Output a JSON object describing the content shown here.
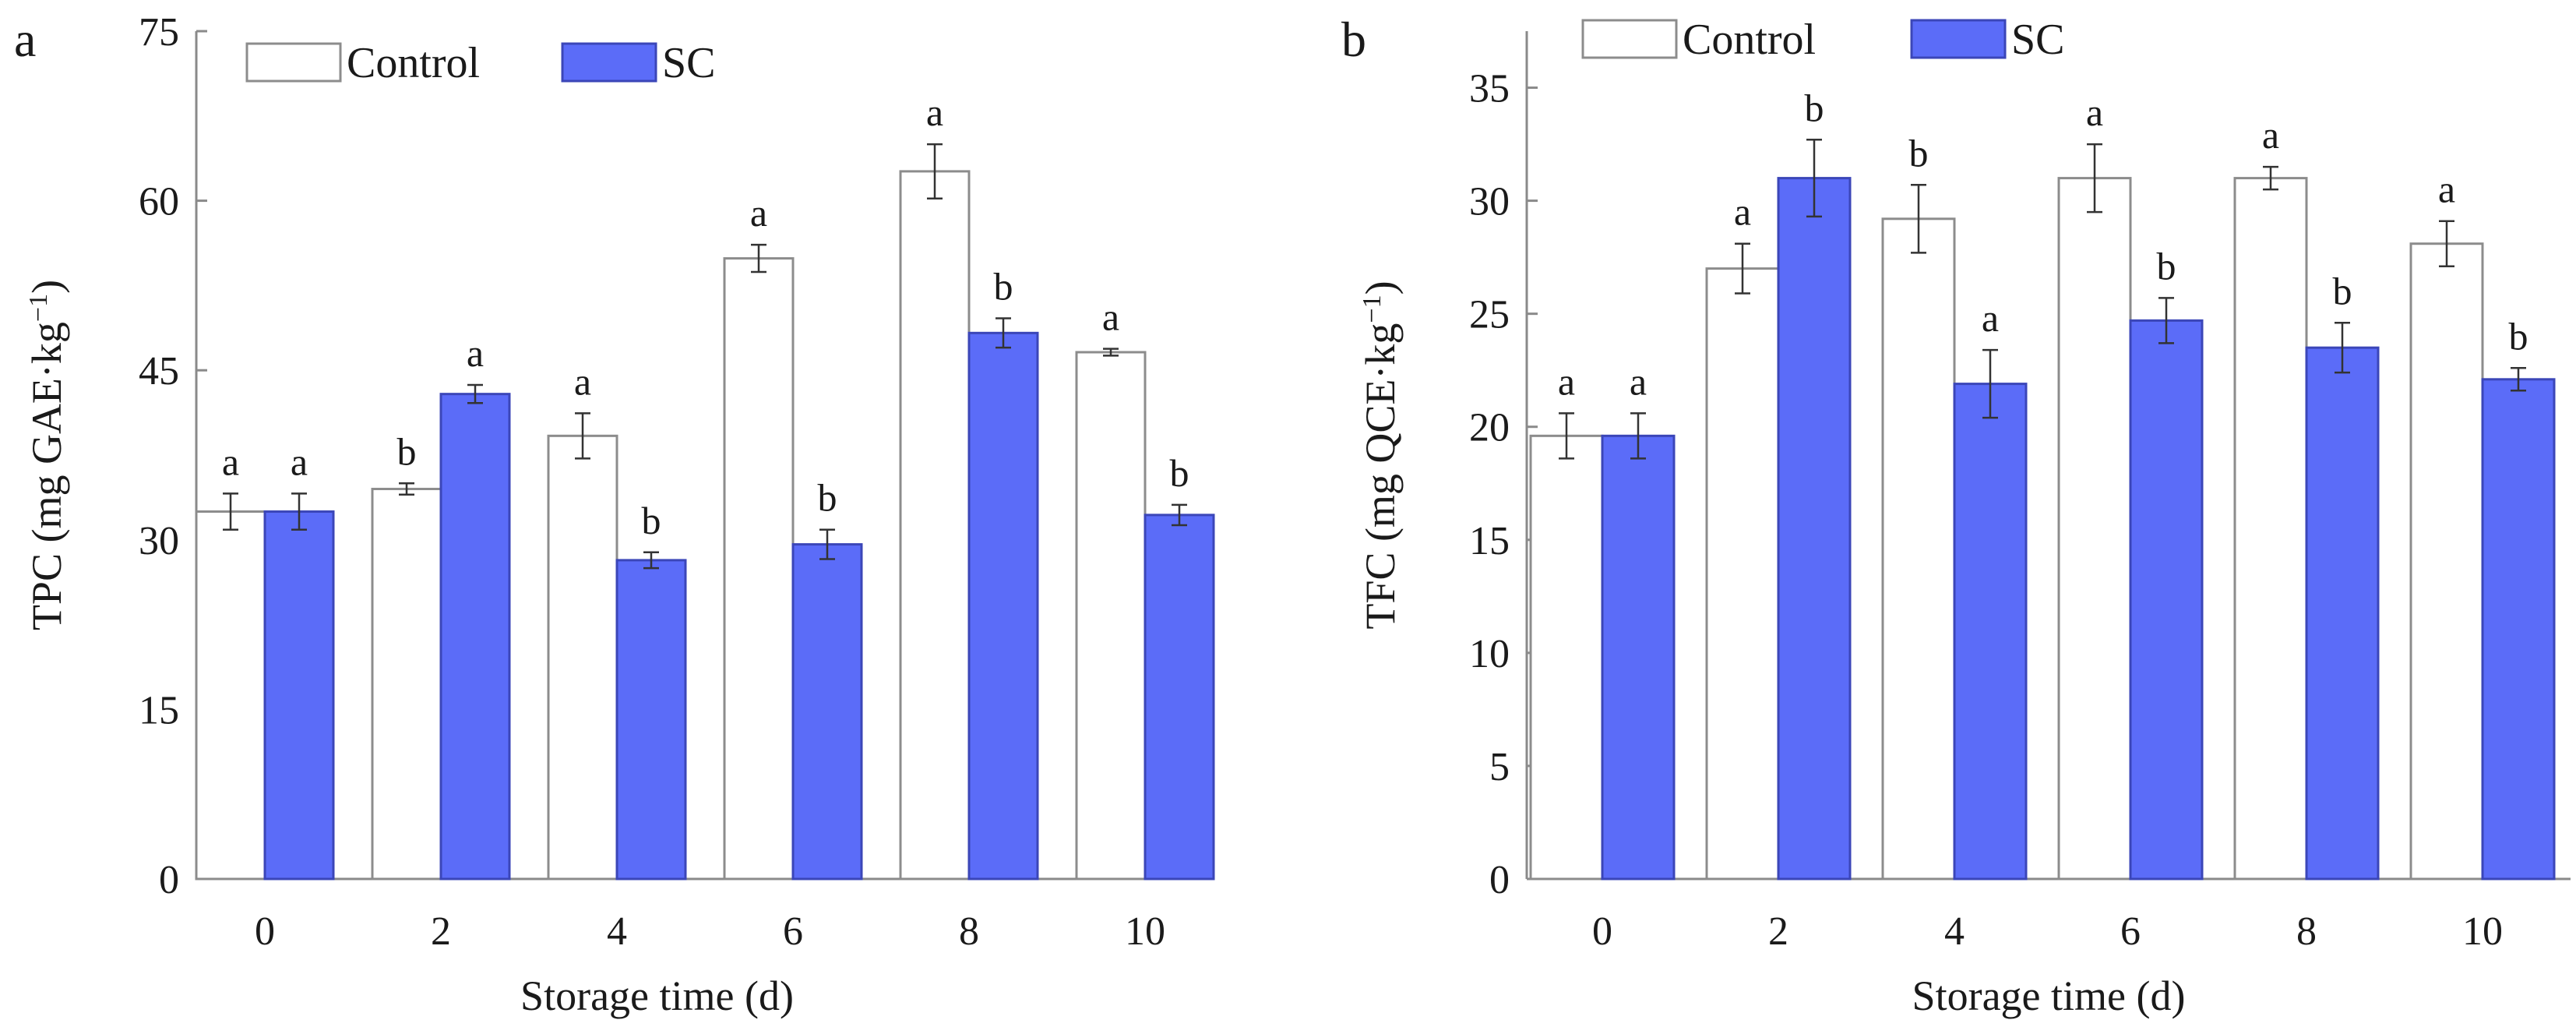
{
  "colors": {
    "control_fill": "#ffffff",
    "control_stroke": "#8c8c8c",
    "sc_fill": "#5b6cf8",
    "sc_stroke": "#3b46b8",
    "axis": "#8a8a8a",
    "text": "#1a1a1a",
    "error_bar": "#333333"
  },
  "chart_data": [
    {
      "type": "bar",
      "panel_label": "a",
      "xlabel": "Storage time (d)",
      "ylabel": "TPC (mg GAE·kg",
      "ylabel_sup": "−1",
      "ylabel_close": ")",
      "categories": [
        "0",
        "2",
        "4",
        "6",
        "8",
        "10"
      ],
      "ylim": [
        0,
        75
      ],
      "yticks": [
        "0",
        "15",
        "30",
        "45",
        "60",
        "75"
      ],
      "legend_position": "top-left",
      "series": [
        {
          "name": "Control",
          "values": [
            32.5,
            34.5,
            39.2,
            54.9,
            62.6,
            46.6
          ],
          "errors": [
            1.6,
            0.5,
            2.0,
            1.2,
            2.4,
            0.3
          ],
          "letters": [
            "a",
            "b",
            "a",
            "a",
            "a",
            "a"
          ]
        },
        {
          "name": "SC",
          "values": [
            32.5,
            42.9,
            28.2,
            29.6,
            48.3,
            32.2
          ],
          "errors": [
            1.6,
            0.8,
            0.7,
            1.3,
            1.3,
            0.9
          ],
          "letters": [
            "a",
            "a",
            "b",
            "b",
            "b",
            "b"
          ]
        }
      ]
    },
    {
      "type": "bar",
      "panel_label": "b",
      "xlabel": "Storage time (d)",
      "ylabel": "TFC (mg QCE·kg",
      "ylabel_sup": "−1",
      "ylabel_close": ")",
      "categories": [
        "0",
        "2",
        "4",
        "6",
        "8",
        "10"
      ],
      "ylim": [
        0,
        37.5
      ],
      "yticks": [
        "0",
        "5",
        "10",
        "15",
        "20",
        "25",
        "30",
        "35"
      ],
      "legend_position": "top-left",
      "series": [
        {
          "name": "Control",
          "values": [
            19.6,
            27.0,
            29.2,
            31.0,
            31.0,
            28.1
          ],
          "errors": [
            1.0,
            1.1,
            1.5,
            1.5,
            0.5,
            1.0
          ],
          "letters": [
            "a",
            "a",
            "b",
            "a",
            "a",
            "a"
          ]
        },
        {
          "name": "SC",
          "values": [
            19.6,
            31.0,
            21.9,
            24.7,
            23.5,
            22.1
          ],
          "errors": [
            1.0,
            1.7,
            1.5,
            1.0,
            1.1,
            0.5
          ],
          "letters": [
            "a",
            "b",
            "a",
            "b",
            "b",
            "b"
          ]
        }
      ]
    }
  ]
}
